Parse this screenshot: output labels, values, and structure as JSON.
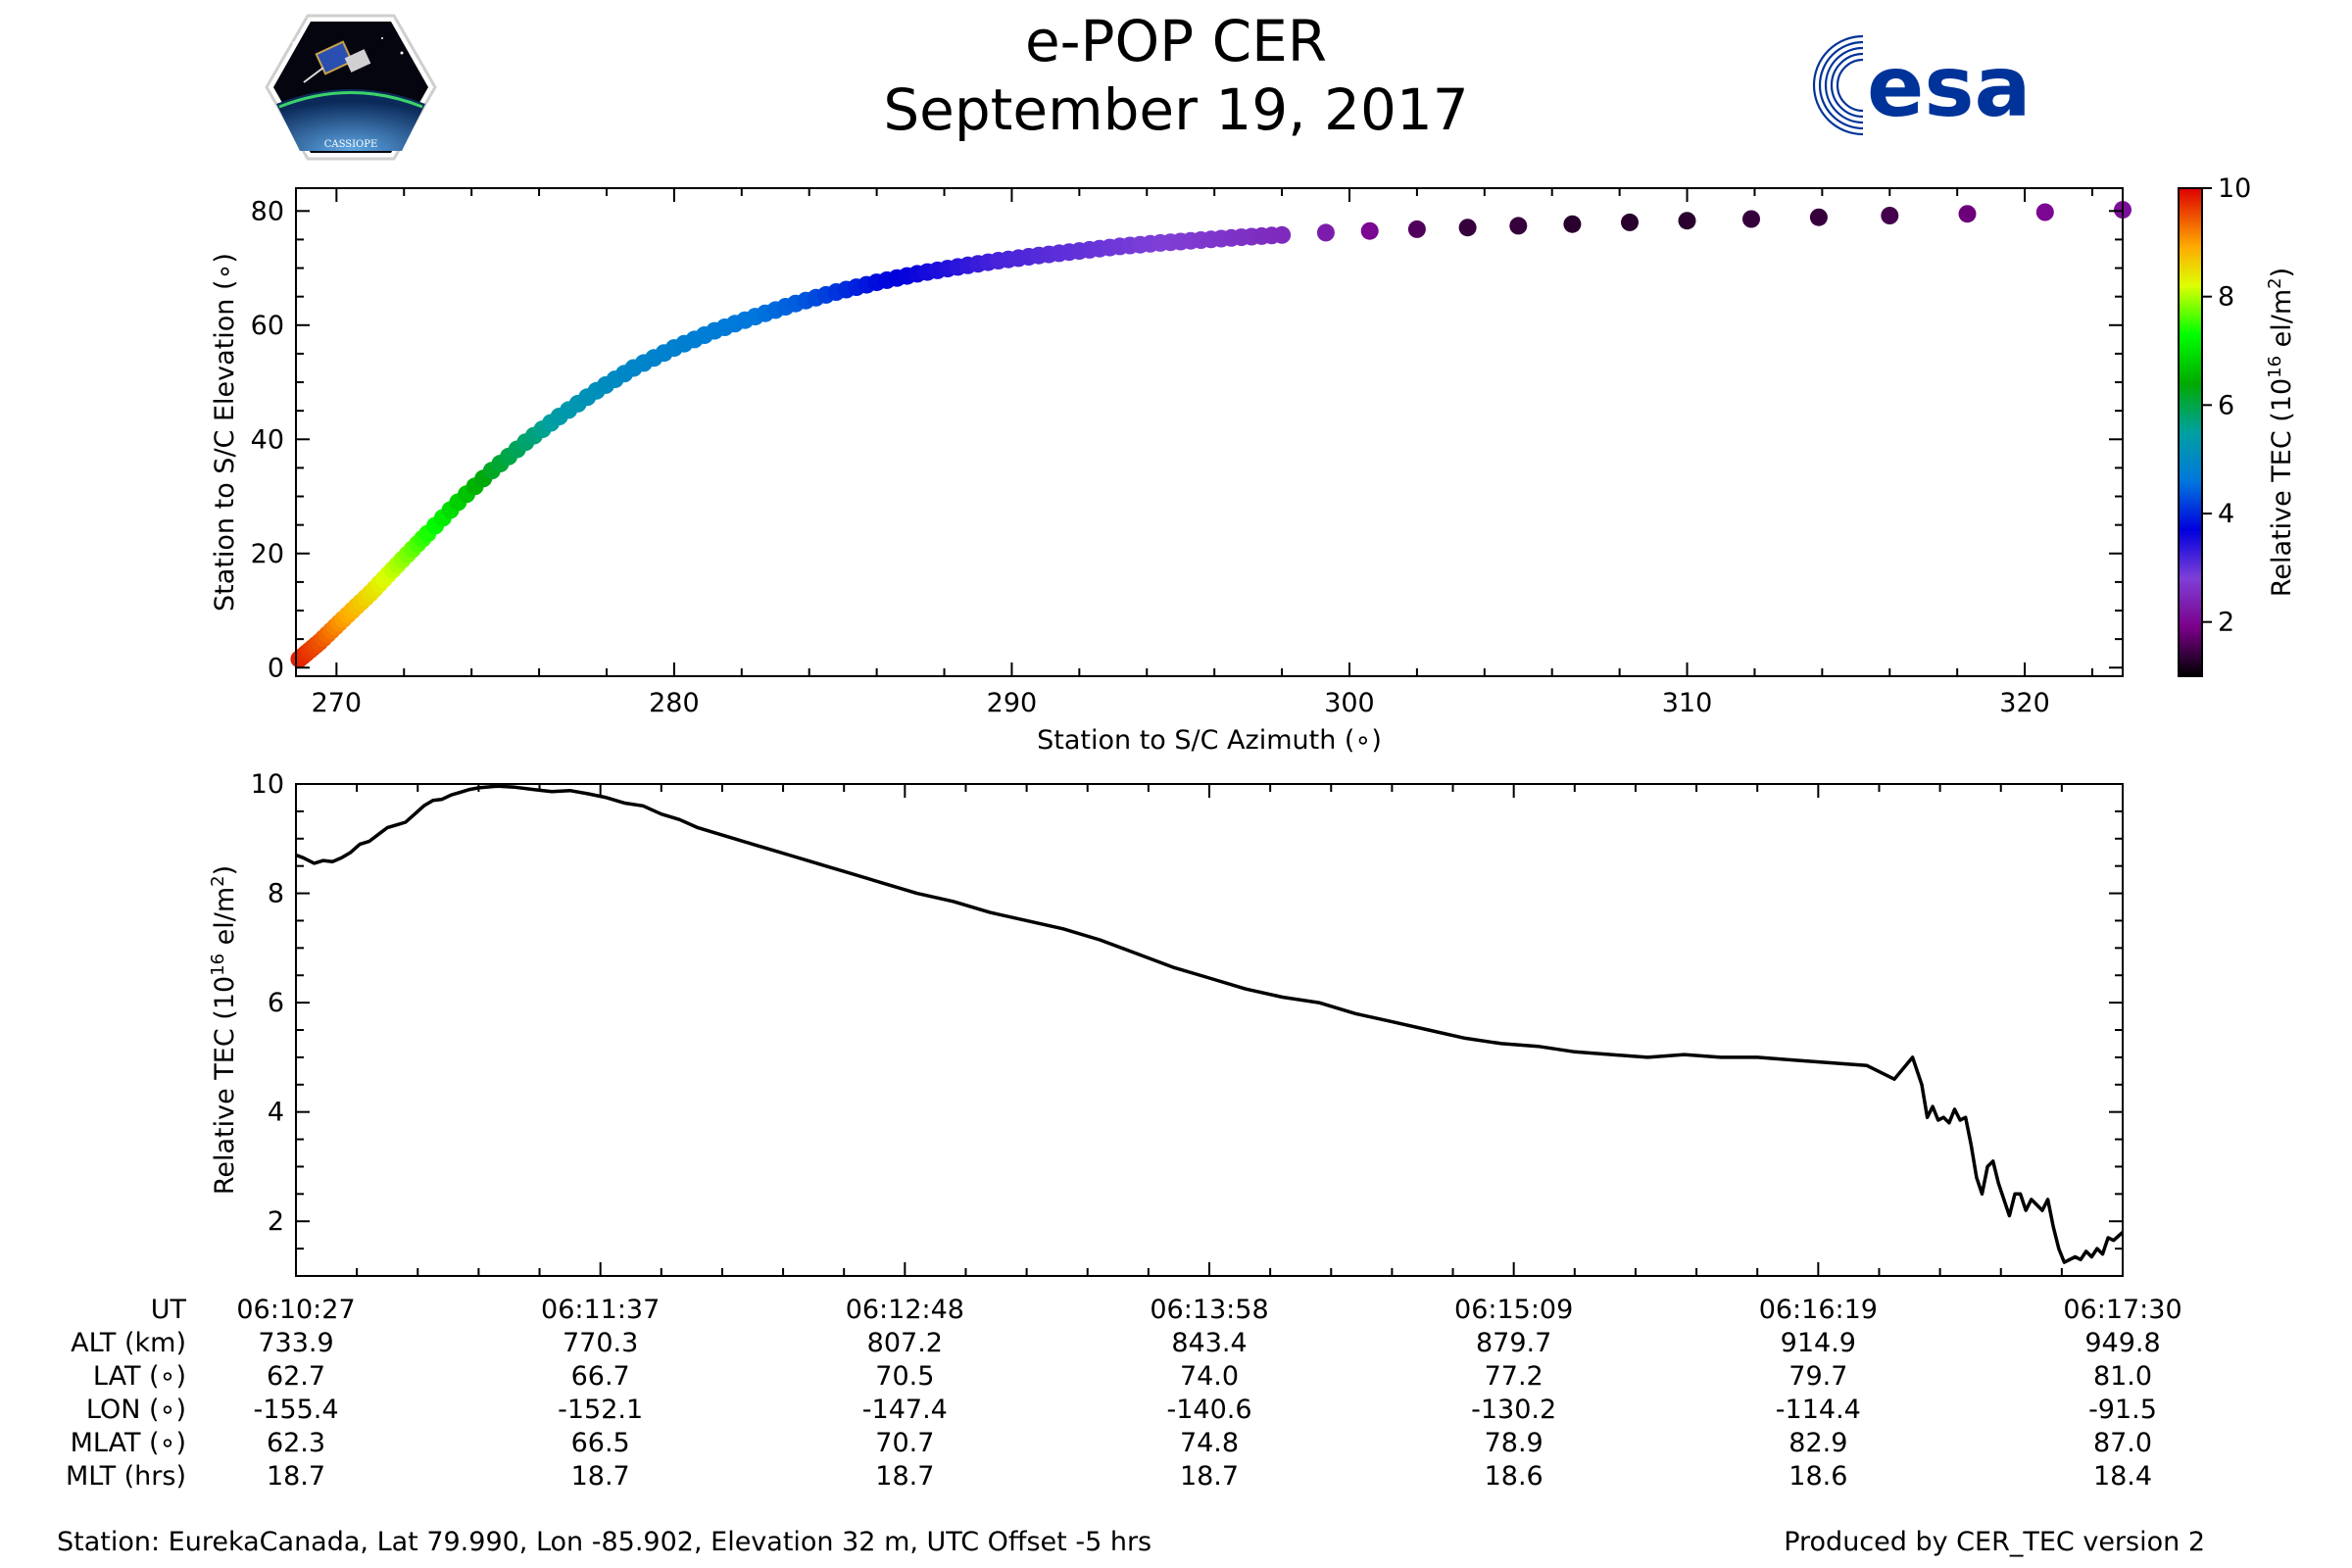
{
  "title": {
    "line1": "e-POP CER",
    "line2": "September 19, 2017"
  },
  "logos": {
    "left": {
      "name": "cassiope-mission-patch",
      "text": "CASSIOPE"
    },
    "right": {
      "name": "esa-logo",
      "text": "esa",
      "color": "#003399"
    }
  },
  "chart_data": [
    {
      "type": "scatter",
      "name": "elevation-vs-azimuth",
      "xlabel": "Station to S/C Azimuth (∘)",
      "ylabel": "Station to S/C Elevation (∘)",
      "xlim": [
        268.8,
        322.9
      ],
      "ylim": [
        -1.5,
        84
      ],
      "xticks": [
        270,
        280,
        290,
        300,
        310,
        320
      ],
      "yticks": [
        0,
        20,
        40,
        60,
        80
      ],
      "colorbar": {
        "label": "Relative TEC (10^16 el/m^2)",
        "label_main": "Relative TEC (10",
        "label_sup": "16",
        "label_tail": " el/m",
        "label_sup2": "2",
        "label_close": ")",
        "range": [
          1,
          10
        ],
        "ticks": [
          2,
          4,
          6,
          8,
          10
        ],
        "colormap": "nipy_spectral"
      },
      "points_description": "Satellite track colored by relative TEC",
      "track": {
        "azimuth": [
          268.9,
          269.5,
          270.2,
          271.0,
          271.8,
          272.7,
          273.6,
          274.6,
          275.6,
          276.6,
          277.7,
          278.8,
          280.0,
          281.2,
          282.4,
          283.6,
          284.8,
          286.0,
          287.2,
          288.4,
          289.6,
          290.8,
          292.0,
          293.2,
          294.4,
          295.6,
          296.8,
          298.0,
          299.3,
          300.6,
          302.0,
          303.5,
          305.0,
          306.6,
          308.3,
          310.0,
          311.9,
          313.9,
          316.0,
          318.3,
          320.6,
          322.9
        ],
        "elevation": [
          1.5,
          4.5,
          8.5,
          13.0,
          18.0,
          23.5,
          29.0,
          34.5,
          39.5,
          44.0,
          48.5,
          52.5,
          56.0,
          59.0,
          61.5,
          63.8,
          65.8,
          67.5,
          69.0,
          70.2,
          71.3,
          72.2,
          73.0,
          73.8,
          74.4,
          74.9,
          75.4,
          75.8,
          76.2,
          76.5,
          76.8,
          77.1,
          77.4,
          77.7,
          78.0,
          78.3,
          78.6,
          78.9,
          79.2,
          79.5,
          79.8,
          80.2
        ],
        "tec": [
          9.8,
          9.5,
          9.0,
          8.5,
          8.0,
          7.4,
          6.8,
          6.2,
          5.8,
          5.4,
          5.1,
          4.9,
          4.8,
          4.7,
          4.6,
          4.4,
          4.1,
          3.8,
          3.6,
          3.4,
          3.2,
          3.1,
          3.0,
          2.9,
          2.8,
          2.7,
          2.6,
          2.5,
          2.3,
          2.0,
          1.6,
          1.4,
          1.4,
          1.3,
          1.3,
          1.3,
          1.4,
          1.4,
          1.5,
          1.8,
          2.0,
          2.1
        ]
      }
    },
    {
      "type": "line",
      "name": "tec-vs-time",
      "ylabel_main": "Relative TEC (10",
      "ylabel_sup": "16",
      "ylabel_tail": " el/m",
      "ylabel_sup2": "2",
      "ylabel_close": ")",
      "ylim": [
        1.0,
        10.0
      ],
      "yticks": [
        2,
        4,
        6,
        8,
        10
      ],
      "xlim": [
        0,
        1
      ],
      "x": [
        0.0,
        0.004,
        0.01,
        0.015,
        0.02,
        0.025,
        0.03,
        0.035,
        0.04,
        0.046,
        0.05,
        0.055,
        0.06,
        0.065,
        0.07,
        0.075,
        0.08,
        0.085,
        0.09,
        0.095,
        0.1,
        0.11,
        0.12,
        0.13,
        0.14,
        0.15,
        0.16,
        0.17,
        0.18,
        0.19,
        0.2,
        0.21,
        0.22,
        0.23,
        0.24,
        0.25,
        0.26,
        0.27,
        0.28,
        0.29,
        0.3,
        0.32,
        0.34,
        0.36,
        0.38,
        0.4,
        0.42,
        0.44,
        0.46,
        0.48,
        0.5,
        0.52,
        0.54,
        0.56,
        0.58,
        0.6,
        0.62,
        0.64,
        0.66,
        0.68,
        0.7,
        0.72,
        0.74,
        0.76,
        0.78,
        0.8,
        0.82,
        0.84,
        0.86,
        0.875,
        0.885,
        0.89,
        0.893,
        0.896,
        0.899,
        0.902,
        0.905,
        0.908,
        0.911,
        0.914,
        0.917,
        0.92,
        0.923,
        0.926,
        0.929,
        0.932,
        0.935,
        0.938,
        0.941,
        0.944,
        0.947,
        0.95,
        0.953,
        0.956,
        0.959,
        0.962,
        0.965,
        0.968,
        0.971,
        0.974,
        0.977,
        0.98,
        0.983,
        0.986,
        0.989,
        0.992,
        0.995,
        1.0
      ],
      "values": [
        8.7,
        8.65,
        8.55,
        8.6,
        8.58,
        8.65,
        8.75,
        8.9,
        8.95,
        9.1,
        9.2,
        9.25,
        9.3,
        9.45,
        9.6,
        9.7,
        9.72,
        9.8,
        9.85,
        9.9,
        9.93,
        9.96,
        9.94,
        9.9,
        9.86,
        9.88,
        9.82,
        9.75,
        9.65,
        9.6,
        9.45,
        9.35,
        9.2,
        9.1,
        9.0,
        8.9,
        8.8,
        8.7,
        8.6,
        8.5,
        8.4,
        8.2,
        8.0,
        7.85,
        7.65,
        7.5,
        7.35,
        7.15,
        6.9,
        6.65,
        6.45,
        6.25,
        6.1,
        6.0,
        5.8,
        5.65,
        5.5,
        5.35,
        5.25,
        5.2,
        5.1,
        5.05,
        5.0,
        5.05,
        5.0,
        5.0,
        4.95,
        4.9,
        4.85,
        4.6,
        5.0,
        4.5,
        3.9,
        4.1,
        3.85,
        3.9,
        3.8,
        4.05,
        3.85,
        3.9,
        3.4,
        2.8,
        2.5,
        3.0,
        3.1,
        2.7,
        2.4,
        2.1,
        2.5,
        2.5,
        2.2,
        2.4,
        2.3,
        2.2,
        2.4,
        1.9,
        1.5,
        1.25,
        1.3,
        1.35,
        1.3,
        1.45,
        1.35,
        1.5,
        1.4,
        1.7,
        1.65,
        1.8
      ]
    }
  ],
  "table": {
    "row_labels": [
      "UT",
      "ALT (km)",
      "LAT (∘)",
      "LON (∘)",
      "MLAT (∘)",
      "MLT (hrs)"
    ],
    "columns": [
      {
        "UT": "06:10:27",
        "ALT": "733.9",
        "LAT": "62.7",
        "LON": "-155.4",
        "MLAT": "62.3",
        "MLT": "18.7"
      },
      {
        "UT": "06:11:37",
        "ALT": "770.3",
        "LAT": "66.7",
        "LON": "-152.1",
        "MLAT": "66.5",
        "MLT": "18.7"
      },
      {
        "UT": "06:12:48",
        "ALT": "807.2",
        "LAT": "70.5",
        "LON": "-147.4",
        "MLAT": "70.7",
        "MLT": "18.7"
      },
      {
        "UT": "06:13:58",
        "ALT": "843.4",
        "LAT": "74.0",
        "LON": "-140.6",
        "MLAT": "74.8",
        "MLT": "18.7"
      },
      {
        "UT": "06:15:09",
        "ALT": "879.7",
        "LAT": "77.2",
        "LON": "-130.2",
        "MLAT": "78.9",
        "MLT": "18.6"
      },
      {
        "UT": "06:16:19",
        "ALT": "914.9",
        "LAT": "79.7",
        "LON": "-114.4",
        "MLAT": "82.9",
        "MLT": "18.6"
      },
      {
        "UT": "06:17:30",
        "ALT": "949.8",
        "LAT": "81.0",
        "LON": "-91.5",
        "MLAT": "87.0",
        "MLT": "18.4"
      }
    ]
  },
  "footer": {
    "station": "Station: EurekaCanada, Lat 79.990, Lon -85.902, Elevation 32 m, UTC Offset -5 hrs",
    "produced": "Produced by CER_TEC version 2"
  }
}
